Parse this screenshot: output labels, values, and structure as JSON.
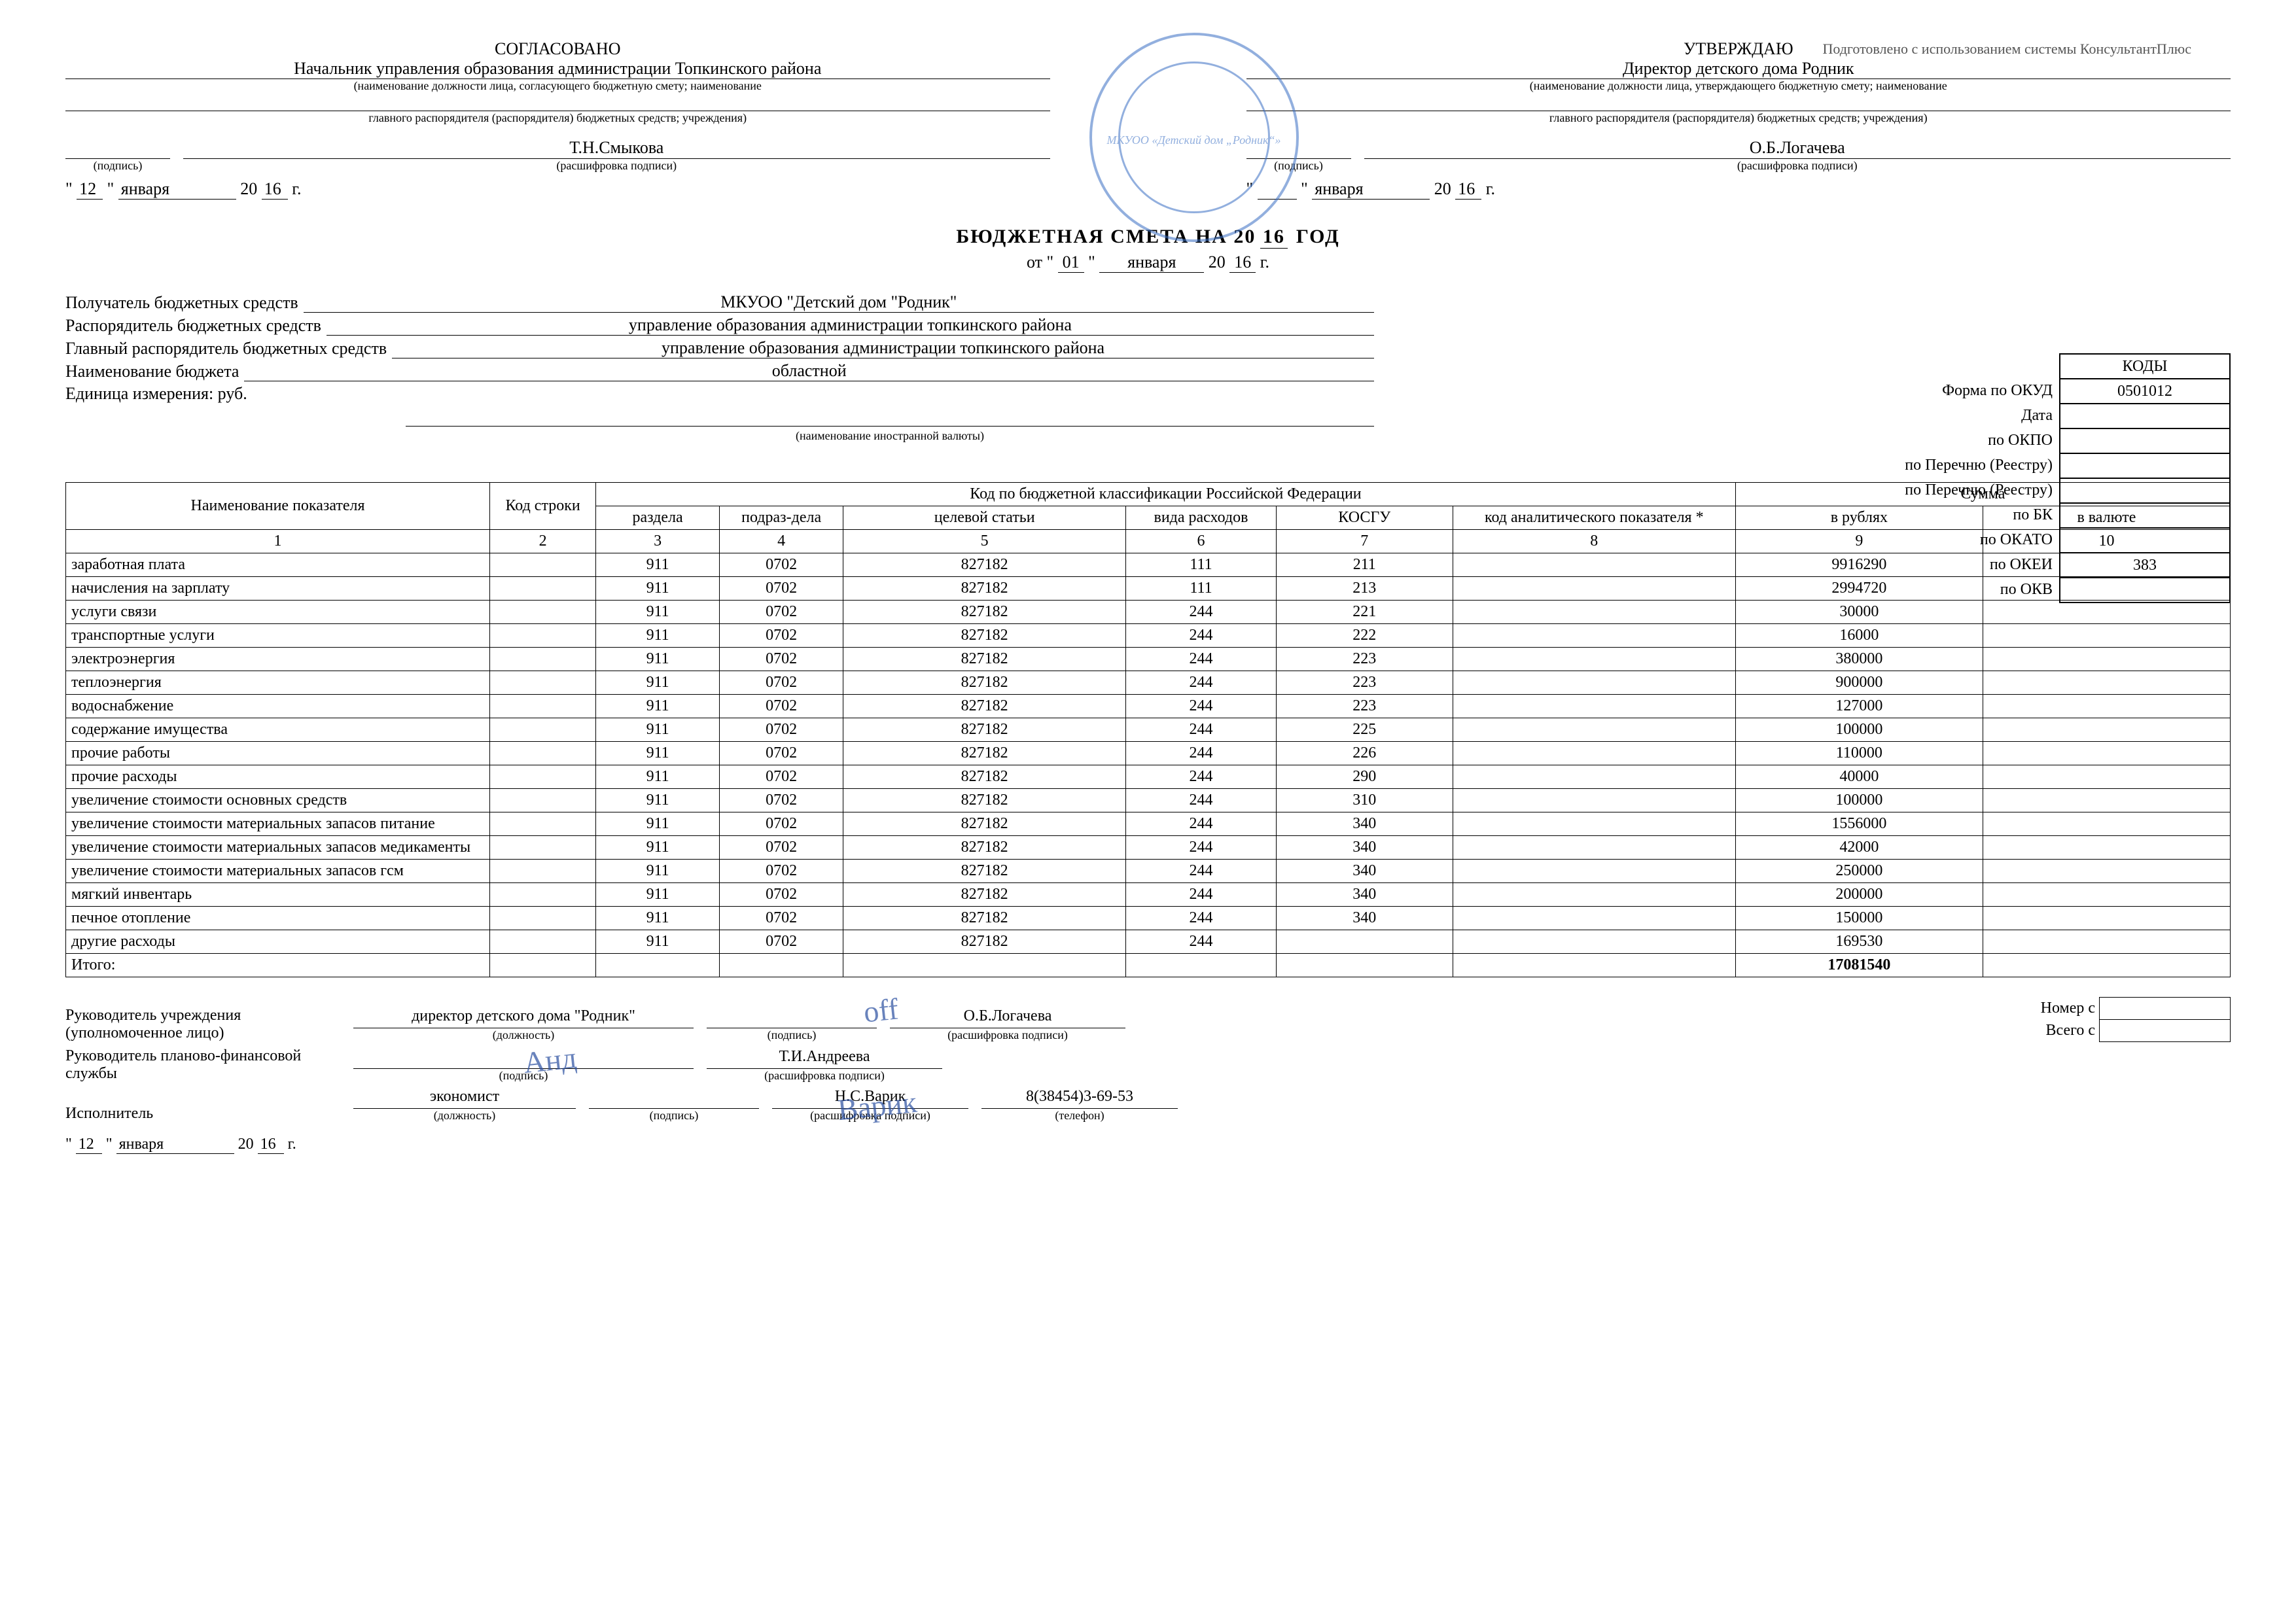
{
  "watermark": "Подготовлено с использованием системы КонсультантПлюс",
  "left_block": {
    "agree": "СОГЛАСОВАНО",
    "position": "Начальник управления образования администрации Топкинского района",
    "pos_note": "(наименование должности лица, согласующего бюджетную смету; наименование",
    "org_note": "главного распорядителя (распорядителя) бюджетных средств; учреждения)",
    "sign_note": "(подпись)",
    "name": "Т.Н.Смыкова",
    "name_note": "(расшифровка подписи)",
    "day": "12",
    "month": "января",
    "year_prefix": "20",
    "year": "16",
    "year_suffix": "г."
  },
  "right_block": {
    "approve": "УТВЕРЖДАЮ",
    "position": "Директор детского дома Родник",
    "pos_note": "(наименование должности лица, утверждающего бюджетную смету; наименование",
    "org_note": "главного распорядителя (распорядителя) бюджетных средств; учреждения)",
    "sign_note": "(подпись)",
    "name": "О.Б.Логачева",
    "name_note": "(расшифровка подписи)",
    "month": "января",
    "year_prefix": "20",
    "year": "16",
    "year_suffix": "г.",
    "stamp_text": "МКУОО «Детский дом „Родник“»"
  },
  "title": {
    "main_prefix": "БЮДЖЕТНАЯ СМЕТА НА 20",
    "main_year": "16",
    "main_suffix": "ГОД",
    "from": "от \"",
    "day": "01",
    "mid": "\"",
    "month": "января",
    "yp": "20",
    "year": "16",
    "ys": "г."
  },
  "codes": {
    "header": "КОДЫ",
    "labels": [
      "Форма по ОКУД",
      "Дата",
      "по ОКПО",
      "по Перечню (Реестру)",
      "по Перечню (Реестру)",
      "по БК",
      "по ОКАТО",
      "по ОКЕИ",
      "по ОКВ"
    ],
    "values": [
      "0501012",
      "",
      "",
      "",
      "",
      "",
      "",
      "383",
      ""
    ]
  },
  "info": {
    "r1l": "Получатель бюджетных средств",
    "r1v": "МКУОО \"Детский дом \"Родник\"",
    "r2l": "Распорядитель бюджетных средств",
    "r2v": "управление образования администрации топкинского района",
    "r3l": "Главный распорядитель бюджетных средств",
    "r3v": "управление образования администрации топкинского района",
    "r4l": "Наименование бюджета",
    "r4v": "областной",
    "r5l": "Единица измерения: руб.",
    "r6note": "(наименование иностранной валюты)"
  },
  "table": {
    "h_name": "Наименование показателя",
    "h_code": "Код строки",
    "h_group": "Код по бюджетной классификации Российской Федерации",
    "h_sum": "Сумма",
    "h_raz": "раздела",
    "h_pod": "подраз-дела",
    "h_cel": "целевой статьи",
    "h_vid": "вида расходов",
    "h_kos": "КОСГУ",
    "h_anal": "код аналитического показателя *",
    "h_rub": "в рублях",
    "h_val": "в валюте",
    "nums": [
      "1",
      "2",
      "3",
      "4",
      "5",
      "6",
      "7",
      "8",
      "9",
      "10"
    ],
    "rows": [
      {
        "name": "заработная плата",
        "raz": "911",
        "pod": "0702",
        "cel": "827182",
        "vid": "111",
        "kos": "211",
        "rub": "9916290"
      },
      {
        "name": "начисления на зарплату",
        "raz": "911",
        "pod": "0702",
        "cel": "827182",
        "vid": "111",
        "kos": "213",
        "rub": "2994720"
      },
      {
        "name": "услуги связи",
        "raz": "911",
        "pod": "0702",
        "cel": "827182",
        "vid": "244",
        "kos": "221",
        "rub": "30000"
      },
      {
        "name": "транспортные услуги",
        "raz": "911",
        "pod": "0702",
        "cel": "827182",
        "vid": "244",
        "kos": "222",
        "rub": "16000"
      },
      {
        "name": "электроэнергия",
        "raz": "911",
        "pod": "0702",
        "cel": "827182",
        "vid": "244",
        "kos": "223",
        "rub": "380000"
      },
      {
        "name": "теплоэнергия",
        "raz": "911",
        "pod": "0702",
        "cel": "827182",
        "vid": "244",
        "kos": "223",
        "rub": "900000"
      },
      {
        "name": "водоснабжение",
        "raz": "911",
        "pod": "0702",
        "cel": "827182",
        "vid": "244",
        "kos": "223",
        "rub": "127000"
      },
      {
        "name": "содержание имущества",
        "raz": "911",
        "pod": "0702",
        "cel": "827182",
        "vid": "244",
        "kos": "225",
        "rub": "100000"
      },
      {
        "name": "прочие работы",
        "raz": "911",
        "pod": "0702",
        "cel": "827182",
        "vid": "244",
        "kos": "226",
        "rub": "110000"
      },
      {
        "name": "прочие расходы",
        "raz": "911",
        "pod": "0702",
        "cel": "827182",
        "vid": "244",
        "kos": "290",
        "rub": "40000"
      },
      {
        "name": "увеличение стоимости основных средств",
        "raz": "911",
        "pod": "0702",
        "cel": "827182",
        "vid": "244",
        "kos": "310",
        "rub": "100000"
      },
      {
        "name": "увеличение стоимости материальных запасов питание",
        "raz": "911",
        "pod": "0702",
        "cel": "827182",
        "vid": "244",
        "kos": "340",
        "rub": "1556000"
      },
      {
        "name": "увеличение стоимости материальных запасов медикаменты",
        "raz": "911",
        "pod": "0702",
        "cel": "827182",
        "vid": "244",
        "kos": "340",
        "rub": "42000"
      },
      {
        "name": "увеличение стоимости материальных запасов гсм",
        "raz": "911",
        "pod": "0702",
        "cel": "827182",
        "vid": "244",
        "kos": "340",
        "rub": "250000"
      },
      {
        "name": "мягкий инвентарь",
        "raz": "911",
        "pod": "0702",
        "cel": "827182",
        "vid": "244",
        "kos": "340",
        "rub": "200000"
      },
      {
        "name": "печное отопление",
        "raz": "911",
        "pod": "0702",
        "cel": "827182",
        "vid": "244",
        "kos": "340",
        "rub": "150000"
      },
      {
        "name": "другие расходы",
        "raz": "911",
        "pod": "0702",
        "cel": "827182",
        "vid": "244",
        "kos": "",
        "rub": "169530"
      }
    ],
    "total_label": "Итого:",
    "total_rub": "17081540"
  },
  "footer": {
    "r1l": "Руководитель учреждения (уполномоченное лицо)",
    "r1pos": "директор детского дома \"Родник\"",
    "r1pos_note": "(должность)",
    "r1sig_note": "(подпись)",
    "r1name": "О.Б.Логачева",
    "r1name_note": "(расшифровка подписи)",
    "r2l": "Руководитель планово-финансовой службы",
    "r2sig_note": "(подпись)",
    "r2name": "Т.И.Андреева",
    "r2name_note": "(расшифровка подписи)",
    "r3l": "Исполнитель",
    "r3pos": "экономист",
    "r3pos_note": "(должность)",
    "r3sig_note": "(подпись)",
    "r3name": "Н.С.Варик",
    "r3name_note": "(расшифровка подписи)",
    "r3tel": "8(38454)3-69-53",
    "r3tel_note": "(телефон)",
    "day": "12",
    "month": "января",
    "yp": "20",
    "year": "16",
    "ys": "г.",
    "box_nomer": "Номер с",
    "box_vsego": "Всего с"
  }
}
